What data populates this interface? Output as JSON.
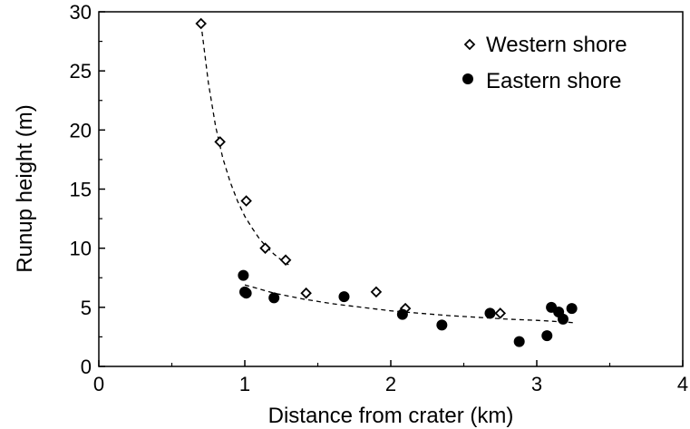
{
  "chart_data": {
    "type": "scatter",
    "xlabel": "Distance from crater (km)",
    "ylabel": "Runup height (m)",
    "xlim": [
      0,
      4
    ],
    "ylim": [
      0,
      30
    ],
    "xticks": [
      0,
      1,
      2,
      3,
      4
    ],
    "yticks": [
      0,
      5,
      10,
      15,
      20,
      25,
      30
    ],
    "grid": false,
    "legend_position": "top-right",
    "series": [
      {
        "name": "Western shore",
        "marker": "open-diamond",
        "x": [
          0.7,
          0.83,
          1.01,
          1.14,
          1.28,
          1.42,
          1.9,
          2.1,
          2.75
        ],
        "y": [
          29.0,
          19.0,
          14.0,
          10.0,
          9.0,
          6.2,
          6.3,
          4.9,
          4.5
        ]
      },
      {
        "name": "Eastern shore",
        "marker": "filled-circle",
        "x": [
          0.99,
          1.0,
          1.01,
          1.2,
          1.68,
          2.08,
          2.35,
          2.68,
          2.88,
          3.07,
          3.1,
          3.15,
          3.18,
          3.24
        ],
        "y": [
          7.7,
          6.3,
          6.2,
          5.8,
          5.9,
          4.4,
          3.5,
          4.5,
          2.1,
          2.6,
          5.0,
          4.6,
          4.0,
          4.9
        ]
      }
    ],
    "fits": [
      {
        "series": "Western shore",
        "style": "dashed",
        "x": [
          0.7,
          0.75,
          0.8,
          0.85,
          0.9,
          0.95,
          1.0,
          1.05,
          1.1,
          1.15,
          1.2,
          1.25,
          1.3
        ],
        "y": [
          29.0,
          24.0,
          20.3,
          17.6,
          15.6,
          14.0,
          12.7,
          11.7,
          10.8,
          10.1,
          9.5,
          9.0,
          8.6
        ]
      },
      {
        "series": "Eastern shore",
        "style": "dashed",
        "x": [
          1.0,
          1.2,
          1.4,
          1.6,
          1.8,
          2.0,
          2.2,
          2.4,
          2.6,
          2.8,
          3.0,
          3.2,
          3.25
        ],
        "y": [
          6.9,
          6.2,
          5.7,
          5.3,
          5.0,
          4.7,
          4.5,
          4.3,
          4.15,
          4.0,
          3.9,
          3.75,
          3.7
        ]
      }
    ],
    "colors": {
      "axis": "#000000",
      "markers": "#000000",
      "background": "#ffffff"
    }
  }
}
